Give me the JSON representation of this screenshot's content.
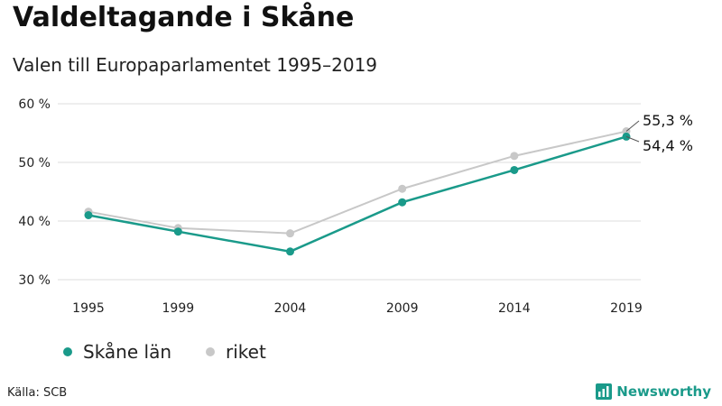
{
  "title": "Valdeltagande i Skåne",
  "subtitle": "Valen till Europaparlamentet 1995–2019",
  "source": "Källa: SCB",
  "brand": {
    "name": "Newsworthy",
    "color": "#1a9a8a"
  },
  "chart_data": {
    "type": "line",
    "title": "Valdeltagande i Skåne",
    "subtitle": "Valen till Europaparlamentet 1995–2019",
    "xlabel": "",
    "ylabel": "",
    "x": [
      1995,
      1999,
      2004,
      2009,
      2014,
      2019
    ],
    "xticks": [
      "1995",
      "1999",
      "2004",
      "2009",
      "2014",
      "2019"
    ],
    "ylim": [
      30,
      60
    ],
    "yticks": [
      30,
      40,
      50,
      60
    ],
    "ytick_labels": [
      "30 %",
      "40 %",
      "50 %",
      "60 %"
    ],
    "grid": true,
    "legend_position": "bottom-left",
    "series": [
      {
        "name": "Skåne län",
        "color": "#1a9a8a",
        "values": [
          41.0,
          38.2,
          34.8,
          43.2,
          48.7,
          54.4
        ],
        "end_label": "54,4 %"
      },
      {
        "name": "riket",
        "color": "#c8c8c8",
        "values": [
          41.6,
          38.8,
          37.9,
          45.5,
          51.1,
          55.3
        ],
        "end_label": "55,3 %"
      }
    ]
  }
}
